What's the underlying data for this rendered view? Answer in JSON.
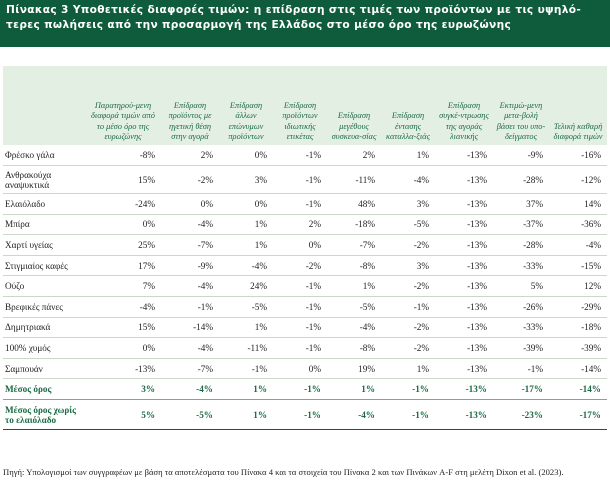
{
  "title": {
    "line1": "Πίνακας 3 Υποθετικές διαφορές τιμών: η επίδραση στις τιμές των προϊόντων με τις υψηλό-",
    "line2": "τερες πωλήσεις από την προσαρμογή της Ελλάδος στο μέσο όρο της ευρωζώνης"
  },
  "columns": [
    "",
    "Παρατηρού-μενη διαφορά τιμών από το μέσο όρο της ευρωζώνης",
    "Επίδραση προϊόντος με ηγετική θέση στην αγορά",
    "Επίδραση άλλων επώνυμων προϊόντων",
    "Επίδραση προϊόντων ιδιωτικής ετικέτας",
    "Επίδραση μεγέθους συσκευα-σίας",
    "Επίδραση έντασης καταλλα-ξιάς",
    "Επίδραση συγκέ-ντρωσης της αγοράς λιανικής",
    "Εκτιμώ-μενη μετα-βολή βάσει του υπο-δείγματος",
    "Τελική καθαρή διαφορά τιμών"
  ],
  "rows": [
    {
      "label": "Φρέσκο γάλα",
      "values": [
        "-8%",
        "2%",
        "0%",
        "-1%",
        "2%",
        "1%",
        "-13%",
        "-9%",
        "-16%"
      ]
    },
    {
      "label": "Ανθρακούχα αναψυκτικά",
      "values": [
        "15%",
        "-2%",
        "3%",
        "-1%",
        "-11%",
        "-4%",
        "-13%",
        "-28%",
        "-12%"
      ]
    },
    {
      "label": "Ελαιόλαδο",
      "values": [
        "-24%",
        "0%",
        "0%",
        "-1%",
        "48%",
        "3%",
        "-13%",
        "37%",
        "14%"
      ]
    },
    {
      "label": "Μπίρα",
      "values": [
        "0%",
        "-4%",
        "1%",
        "2%",
        "-18%",
        "-5%",
        "-13%",
        "-37%",
        "-36%"
      ]
    },
    {
      "label": "Χαρτί υγείας",
      "values": [
        "25%",
        "-7%",
        "1%",
        "0%",
        "-7%",
        "-2%",
        "-13%",
        "-28%",
        "-4%"
      ]
    },
    {
      "label": "Στιγμιαίος καφές",
      "values": [
        "17%",
        "-9%",
        "-4%",
        "-2%",
        "-8%",
        "3%",
        "-13%",
        "-33%",
        "-15%"
      ]
    },
    {
      "label": "Ούζο",
      "values": [
        "7%",
        "-4%",
        "24%",
        "-1%",
        "1%",
        "-2%",
        "-13%",
        "5%",
        "12%"
      ]
    },
    {
      "label": "Βρεφικές πάνες",
      "values": [
        "-4%",
        "-1%",
        "-5%",
        "-1%",
        "-5%",
        "-1%",
        "-13%",
        "-26%",
        "-29%"
      ]
    },
    {
      "label": "Δημητριακά",
      "values": [
        "15%",
        "-14%",
        "1%",
        "-1%",
        "-4%",
        "-2%",
        "-13%",
        "-33%",
        "-18%"
      ]
    },
    {
      "label": "100% χυμός",
      "values": [
        "0%",
        "-4%",
        "-11%",
        "-1%",
        "-8%",
        "-2%",
        "-13%",
        "-39%",
        "-39%"
      ]
    },
    {
      "label": "Σαμπουάν",
      "values": [
        "-13%",
        "-7%",
        "-1%",
        "0%",
        "19%",
        "1%",
        "-13%",
        "-1%",
        "-14%"
      ]
    }
  ],
  "average_row": {
    "label": "Μέσος όρος",
    "values": [
      "3%",
      "-4%",
      "1%",
      "-1%",
      "1%",
      "-1%",
      "-13%",
      "-17%",
      "-14%"
    ]
  },
  "average_ex_oil_row": {
    "label": "Μέσος όρος χωρίς το ελαιόλαδο",
    "values": [
      "5%",
      "-5%",
      "1%",
      "-1%",
      "-4%",
      "-1%",
      "-13%",
      "-23%",
      "-17%"
    ]
  },
  "source": "Πηγή: Υπολογισμοί των συγγραφέων με βάση τα αποτελέσματα του Πίνακα 4 και τα στοιχεία του Πίνακα 2 και των Πινάκων A-F στη μελέτη Dixon et al. (2023).",
  "colors": {
    "header_bg": "#0f5c3c",
    "accent_text": "#1a6b43",
    "table_head_bg": "#e4efe4"
  }
}
